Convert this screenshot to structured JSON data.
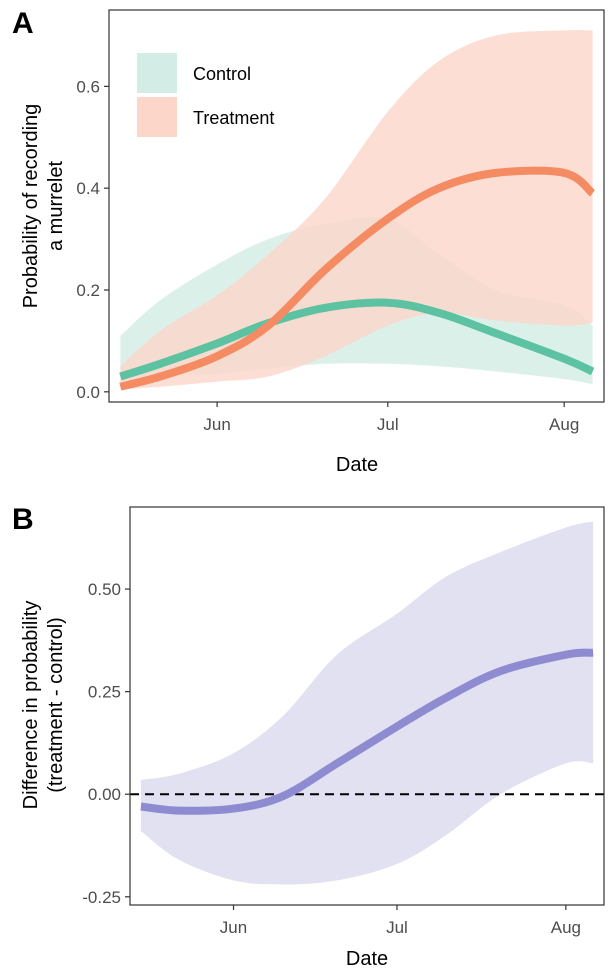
{
  "chart_data": [
    {
      "panel_label": "A",
      "type": "line",
      "xlabel": "Date",
      "ylabel": [
        "Probability of recording",
        "a murrelet"
      ],
      "x_tick_labels": [
        {
          "date": "2000-06-01",
          "label": "Jun"
        },
        {
          "date": "2000-07-01",
          "label": "Jul"
        },
        {
          "date": "2000-08-01",
          "label": "Aug"
        }
      ],
      "xlim": [
        "2000-05-13",
        "2000-08-08"
      ],
      "ylim": [
        -0.02,
        0.75
      ],
      "y_ticks": [
        {
          "value": 0.0,
          "label": "0.0"
        },
        {
          "value": 0.2,
          "label": "0.2"
        },
        {
          "value": 0.4,
          "label": "0.4"
        },
        {
          "value": 0.6,
          "label": "0.6"
        }
      ],
      "grid": false,
      "legend": {
        "position": "top-left"
      },
      "x": [
        "2000-05-15",
        "2000-05-22",
        "2000-06-01",
        "2000-06-10",
        "2000-06-20",
        "2000-07-01",
        "2000-07-10",
        "2000-07-20",
        "2000-08-01",
        "2000-08-06"
      ],
      "series": [
        {
          "name": "Control",
          "color": "#5cc2a1",
          "ribbon_color": "#d3ece5",
          "values": [
            0.03,
            0.055,
            0.095,
            0.135,
            0.165,
            0.175,
            0.155,
            0.115,
            0.065,
            0.04
          ],
          "lower": [
            0.02,
            0.03,
            0.035,
            0.045,
            0.055,
            0.055,
            0.05,
            0.04,
            0.025,
            0.015
          ],
          "upper": [
            0.11,
            0.18,
            0.25,
            0.3,
            0.33,
            0.34,
            0.27,
            0.2,
            0.17,
            0.13
          ]
        },
        {
          "name": "Treatment",
          "color": "#f58b63",
          "ribbon_color": "#fcd6c9",
          "values": [
            0.01,
            0.03,
            0.07,
            0.13,
            0.24,
            0.34,
            0.4,
            0.43,
            0.43,
            0.39
          ],
          "lower": [
            0.005,
            0.01,
            0.02,
            0.03,
            0.07,
            0.13,
            0.155,
            0.14,
            0.13,
            0.135
          ],
          "upper": [
            0.05,
            0.12,
            0.19,
            0.27,
            0.38,
            0.55,
            0.65,
            0.7,
            0.71,
            0.71
          ]
        }
      ]
    },
    {
      "panel_label": "B",
      "type": "line",
      "xlabel": "Date",
      "ylabel": [
        "Difference in probability",
        "(treatment - control)"
      ],
      "x_tick_labels": [
        {
          "date": "2000-06-01",
          "label": "Jun"
        },
        {
          "date": "2000-07-01",
          "label": "Jul"
        },
        {
          "date": "2000-08-01",
          "label": "Aug"
        }
      ],
      "xlim": [
        "2000-05-13",
        "2000-08-08"
      ],
      "ylim": [
        -0.27,
        0.7
      ],
      "y_ticks": [
        {
          "value": -0.25,
          "label": "-0.25"
        },
        {
          "value": 0.0,
          "label": "0.00"
        },
        {
          "value": 0.25,
          "label": "0.25"
        },
        {
          "value": 0.5,
          "label": "0.50"
        }
      ],
      "grid": false,
      "reference_line": 0.0,
      "x": [
        "2000-05-15",
        "2000-05-22",
        "2000-06-01",
        "2000-06-10",
        "2000-06-20",
        "2000-07-01",
        "2000-07-10",
        "2000-07-20",
        "2000-08-01",
        "2000-08-06"
      ],
      "series": [
        {
          "color": "#8e8bd1",
          "ribbon_color": "#e2e1f2",
          "values": [
            -0.03,
            -0.04,
            -0.035,
            -0.005,
            0.075,
            0.165,
            0.235,
            0.3,
            0.34,
            0.345
          ],
          "lower": [
            -0.09,
            -0.16,
            -0.21,
            -0.22,
            -0.21,
            -0.17,
            -0.1,
            0.0,
            0.075,
            0.075
          ],
          "upper": [
            0.035,
            0.05,
            0.1,
            0.19,
            0.34,
            0.44,
            0.53,
            0.59,
            0.65,
            0.665
          ]
        }
      ]
    }
  ]
}
